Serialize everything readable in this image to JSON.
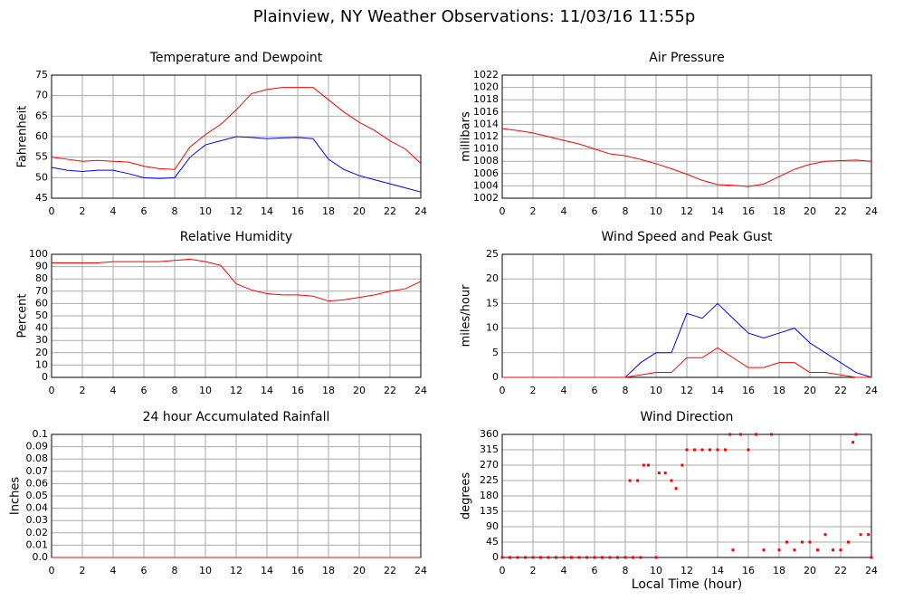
{
  "title": "Plainview, NY Weather Observations: 11/03/16 11:55p",
  "chart_data": [
    {
      "type": "line",
      "title": "Temperature and Dewpoint",
      "ylabel": "Fahrenheit",
      "x": [
        0,
        1,
        2,
        3,
        4,
        5,
        6,
        7,
        8,
        9,
        10,
        11,
        12,
        13,
        14,
        15,
        16,
        17,
        18,
        19,
        20,
        21,
        22,
        23,
        24
      ],
      "series": [
        {
          "color": "#ff0000",
          "values": [
            55,
            54.5,
            54,
            54.2,
            54,
            53.8,
            52.8,
            52.2,
            52,
            57.5,
            60.5,
            63,
            66.5,
            70.5,
            71.5,
            72,
            72,
            72,
            69,
            66,
            63.5,
            61.5,
            59,
            57,
            53.5
          ]
        },
        {
          "color": "#0000ff",
          "values": [
            52.5,
            51.8,
            51.5,
            51.8,
            51.8,
            51,
            50,
            49.8,
            50,
            55,
            58,
            59,
            60,
            59.8,
            59.5,
            59.7,
            59.8,
            59.5,
            54.5,
            52,
            50.5,
            49.5,
            48.5,
            47.5,
            46.5
          ]
        }
      ],
      "xlim": [
        0,
        24
      ],
      "xticks": [
        0,
        2,
        4,
        6,
        8,
        10,
        12,
        14,
        16,
        18,
        20,
        22,
        24
      ],
      "ylim": [
        45,
        75
      ],
      "yticks": [
        45,
        50,
        55,
        60,
        65,
        70,
        75
      ],
      "grid": true
    },
    {
      "type": "line",
      "title": "Air Pressure",
      "ylabel": "millibars",
      "x": [
        0,
        1,
        2,
        3,
        4,
        5,
        6,
        7,
        8,
        9,
        10,
        11,
        12,
        13,
        14,
        15,
        16,
        17,
        18,
        19,
        20,
        21,
        22,
        23,
        24
      ],
      "series": [
        {
          "color": "#ff0000",
          "values": [
            1013.3,
            1013,
            1012.6,
            1012,
            1011.4,
            1010.8,
            1010,
            1009.2,
            1008.9,
            1008.3,
            1007.6,
            1006.8,
            1005.9,
            1004.9,
            1004.2,
            1004.1,
            1003.9,
            1004.3,
            1005.5,
            1006.7,
            1007.5,
            1008,
            1008.1,
            1008.2,
            1008
          ]
        }
      ],
      "xlim": [
        0,
        24
      ],
      "xticks": [
        0,
        2,
        4,
        6,
        8,
        10,
        12,
        14,
        16,
        18,
        20,
        22,
        24
      ],
      "ylim": [
        1002,
        1022
      ],
      "yticks": [
        1002,
        1004,
        1006,
        1008,
        1010,
        1012,
        1014,
        1016,
        1018,
        1020,
        1022
      ],
      "grid": true
    },
    {
      "type": "line",
      "title": "Relative Humidity",
      "ylabel": "Percent",
      "x": [
        0,
        1,
        2,
        3,
        4,
        5,
        6,
        7,
        8,
        9,
        10,
        11,
        12,
        13,
        14,
        15,
        16,
        17,
        18,
        19,
        20,
        21,
        22,
        23,
        24
      ],
      "series": [
        {
          "color": "#ff0000",
          "values": [
            93,
            93,
            93,
            93,
            94,
            94,
            94,
            94,
            95,
            96,
            94,
            91,
            76,
            71,
            68,
            67,
            67,
            66,
            62,
            63,
            65,
            67,
            70,
            72,
            78
          ]
        }
      ],
      "xlim": [
        0,
        24
      ],
      "xticks": [
        0,
        2,
        4,
        6,
        8,
        10,
        12,
        14,
        16,
        18,
        20,
        22,
        24
      ],
      "ylim": [
        0,
        100
      ],
      "yticks": [
        0,
        10,
        20,
        30,
        40,
        50,
        60,
        70,
        80,
        90,
        100
      ],
      "grid": true
    },
    {
      "type": "line",
      "title": "Wind Speed and Peak Gust",
      "ylabel": "miles/hour",
      "x": [
        0,
        1,
        2,
        3,
        4,
        5,
        6,
        7,
        8,
        9,
        10,
        11,
        12,
        13,
        14,
        15,
        16,
        17,
        18,
        19,
        20,
        21,
        22,
        23,
        24
      ],
      "series": [
        {
          "color": "#0000ff",
          "values": [
            0,
            0,
            0,
            0,
            0,
            0,
            0,
            0,
            0,
            3,
            5,
            5,
            13,
            12,
            15,
            12,
            9,
            8,
            9,
            10,
            7,
            5,
            3,
            1,
            0
          ]
        },
        {
          "color": "#ff0000",
          "values": [
            0,
            0,
            0,
            0,
            0,
            0,
            0,
            0,
            0,
            0.5,
            1,
            1,
            4,
            4,
            6,
            4,
            2,
            2,
            3,
            3,
            1,
            1,
            0.5,
            0,
            0
          ]
        }
      ],
      "xlim": [
        0,
        24
      ],
      "xticks": [
        0,
        2,
        4,
        6,
        8,
        10,
        12,
        14,
        16,
        18,
        20,
        22,
        24
      ],
      "ylim": [
        0,
        25
      ],
      "yticks": [
        0,
        5,
        10,
        15,
        20,
        25
      ],
      "grid": true
    },
    {
      "type": "line",
      "title": "24 hour Accumulated Rainfall",
      "ylabel": "Inches",
      "x": [
        0,
        24
      ],
      "series": [
        {
          "color": "#ff0000",
          "values": [
            0,
            0
          ]
        }
      ],
      "xlim": [
        0,
        24
      ],
      "xticks": [
        0,
        2,
        4,
        6,
        8,
        10,
        12,
        14,
        16,
        18,
        20,
        22,
        24
      ],
      "ylim": [
        0,
        0.1
      ],
      "yticks": [
        {
          "value": 0,
          "label": "0.0"
        },
        0.01,
        0.02,
        0.03,
        0.04,
        0.05,
        0.06,
        0.07,
        0.08,
        0.09,
        0.1
      ],
      "grid": true
    },
    {
      "type": "scatter",
      "title": "Wind Direction",
      "ylabel": "degrees",
      "xlabel": "Local Time (hour)",
      "x": [
        0,
        0.5,
        1,
        1.5,
        2,
        2.5,
        3,
        3.5,
        4,
        4.5,
        5,
        5.5,
        6,
        6.5,
        7,
        7.5,
        8,
        8.5,
        9,
        10,
        8.3,
        8.8,
        9.2,
        9.5,
        10.2,
        10.6,
        11,
        11.3,
        11.7,
        12,
        12.5,
        13,
        13.5,
        14,
        14.5,
        14.8,
        15,
        15.5,
        16,
        16.5,
        17,
        17.5,
        18,
        18.5,
        19,
        19.5,
        20,
        20.5,
        21,
        21.5,
        22,
        22.5,
        22.8,
        23,
        23.3,
        23.8,
        24
      ],
      "values": [
        0,
        0,
        0,
        0,
        0,
        0,
        0,
        0,
        0,
        0,
        0,
        0,
        0,
        0,
        0,
        0,
        0,
        0,
        0,
        0,
        225,
        225,
        270,
        270,
        247,
        247,
        225,
        202,
        270,
        315,
        315,
        315,
        315,
        315,
        315,
        360,
        22,
        360,
        315,
        360,
        22,
        360,
        22,
        45,
        22,
        45,
        45,
        22,
        67,
        22,
        22,
        45,
        337,
        360,
        67,
        67,
        0
      ],
      "color": "#ff0000",
      "xlim": [
        0,
        24
      ],
      "xticks": [
        0,
        2,
        4,
        6,
        8,
        10,
        12,
        14,
        16,
        18,
        20,
        22,
        24
      ],
      "ylim": [
        0,
        360
      ],
      "yticks": [
        0,
        45,
        90,
        135,
        180,
        225,
        270,
        315,
        360
      ],
      "grid": true
    }
  ]
}
